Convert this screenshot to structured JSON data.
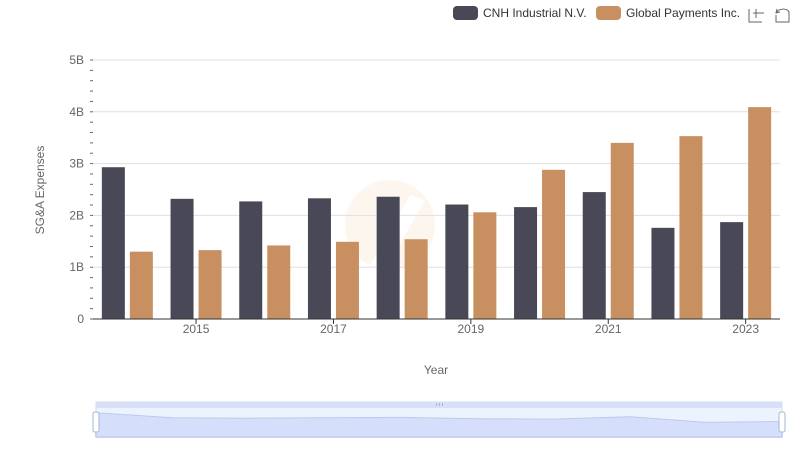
{
  "chart_data": {
    "type": "bar",
    "xlabel": "Year",
    "ylabel": "SG&A Expenses",
    "categories": [
      2014,
      2015,
      2016,
      2017,
      2018,
      2019,
      2020,
      2021,
      2022,
      2023
    ],
    "x_tick_labels": [
      "2015",
      "2017",
      "2019",
      "2021",
      "2023"
    ],
    "y_tick_labels": [
      "0",
      "1B",
      "2B",
      "3B",
      "4B",
      "5B"
    ],
    "ylim": [
      0,
      5000000000
    ],
    "grid": true,
    "legend_position": "top-right",
    "series": [
      {
        "name": "CNH Industrial N.V.",
        "color": "#484857",
        "values": [
          2930000000,
          2320000000,
          2270000000,
          2330000000,
          2360000000,
          2210000000,
          2160000000,
          2450000000,
          1760000000,
          1870000000
        ]
      },
      {
        "name": "Global Payments Inc.",
        "color": "#c89060",
        "values": [
          1300000000,
          1330000000,
          1420000000,
          1490000000,
          1540000000,
          2060000000,
          2880000000,
          3400000000,
          3530000000,
          4090000000
        ]
      }
    ]
  },
  "toolbar": {
    "zoom_icon": "zoom-in-icon",
    "reset_icon": "zoom-reset-icon"
  },
  "data_zoom": {
    "start_percent": 0,
    "end_percent": 100,
    "fill_color": "#dfe7ff",
    "handle_color": "#a7b7cc"
  }
}
